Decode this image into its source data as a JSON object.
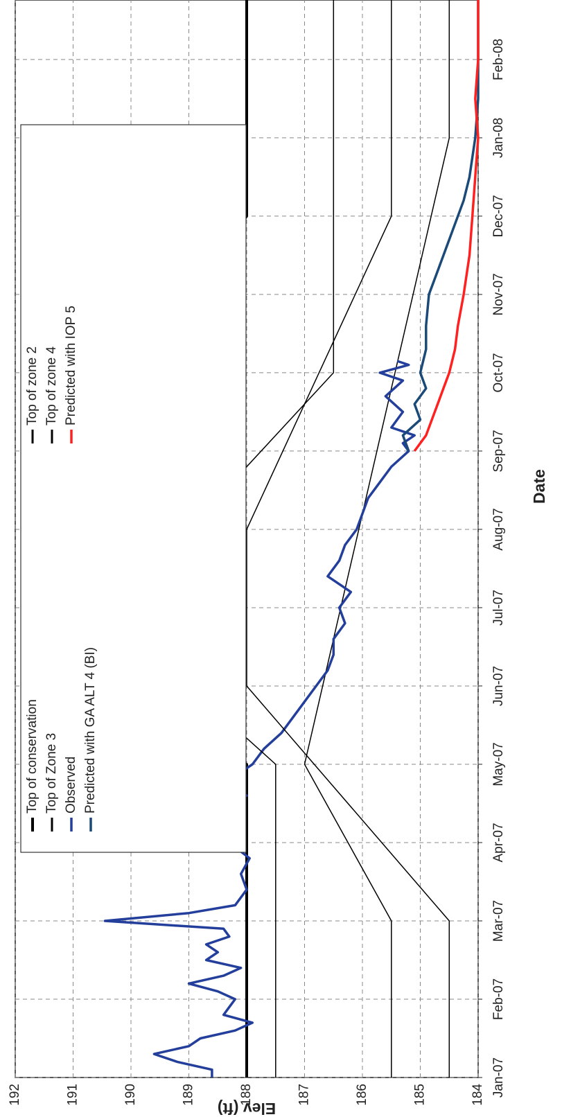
{
  "chart_data": {
    "type": "line",
    "x_label": "Date",
    "y_label": "Elev (ft)",
    "xlim": [
      0,
      13.76
    ],
    "ylim": [
      184,
      192
    ],
    "xticks": [
      {
        "value": 0,
        "label": "Jan-07"
      },
      {
        "value": 1,
        "label": "Feb-07"
      },
      {
        "value": 2,
        "label": "Mar-07"
      },
      {
        "value": 3,
        "label": "Apr-07"
      },
      {
        "value": 4,
        "label": "May-07"
      },
      {
        "value": 5,
        "label": "Jun-07"
      },
      {
        "value": 6,
        "label": "Jul-07"
      },
      {
        "value": 7,
        "label": "Aug-07"
      },
      {
        "value": 8,
        "label": "Sep-07"
      },
      {
        "value": 9,
        "label": "Oct-07"
      },
      {
        "value": 10,
        "label": "Nov-07"
      },
      {
        "value": 11,
        "label": "Dec-07"
      },
      {
        "value": 12,
        "label": "Jan-08"
      },
      {
        "value": 13,
        "label": "Feb-08"
      }
    ],
    "yticks": [
      184,
      185,
      186,
      187,
      188,
      189,
      190,
      191,
      192
    ],
    "grid": true,
    "series": [
      {
        "name": "Top of conservation",
        "color": "#000000",
        "width": 4,
        "x": [
          0,
          4,
          5,
          9,
          11,
          13.76
        ],
        "values": [
          188,
          188,
          190,
          190,
          188,
          188
        ]
      },
      {
        "name": "Top of Zone 3",
        "color": "#000000",
        "width": 1.5,
        "x": [
          0,
          2,
          4,
          12,
          13.76
        ],
        "values": [
          185.5,
          185.5,
          187,
          184.5,
          184.5
        ]
      },
      {
        "name": "Observed",
        "color": "#233f9b",
        "width": 3.5,
        "x": [
          0,
          0.1,
          0.2,
          0.3,
          0.4,
          0.5,
          0.6,
          0.7,
          0.8,
          0.9,
          1.0,
          1.1,
          1.2,
          1.3,
          1.4,
          1.5,
          1.6,
          1.7,
          1.8,
          1.9,
          2.0,
          2.1,
          2.2,
          2.4,
          2.6,
          2.8,
          3.0,
          3.2,
          3.4,
          3.5,
          3.6,
          3.7,
          3.8,
          3.9,
          4.0,
          4.2,
          4.4,
          4.6,
          4.8,
          5.0,
          5.2,
          5.4,
          5.6,
          5.8,
          6.0,
          6.2,
          6.4,
          6.6,
          6.8,
          7.0,
          7.2,
          7.4,
          7.6,
          7.8,
          8.0,
          8.1,
          8.2,
          8.3,
          8.5,
          8.7,
          8.9,
          9.0,
          9.1,
          9.15
        ],
        "values": [
          188.6,
          188.6,
          189.2,
          189.6,
          189.0,
          188.8,
          188.2,
          187.9,
          188.4,
          188.3,
          188.2,
          188.5,
          189.0,
          188.4,
          188.1,
          188.7,
          188.5,
          188.7,
          188.3,
          188.4,
          190.45,
          189.0,
          188.2,
          188.0,
          188.1,
          187.95,
          188.3,
          188.5,
          188.1,
          188.6,
          188.0,
          188.2,
          188.9,
          188.1,
          187.9,
          187.7,
          187.4,
          187.2,
          187.0,
          186.8,
          186.6,
          186.5,
          186.5,
          186.3,
          186.4,
          186.2,
          186.6,
          186.4,
          186.3,
          186.1,
          186.0,
          185.9,
          185.7,
          185.5,
          185.2,
          185.3,
          185.1,
          185.5,
          185.3,
          185.6,
          185.3,
          185.7,
          185.2,
          185.4
        ]
      },
      {
        "name": "Predicted with GA ALT 4 (BI)",
        "color": "#1b4a78",
        "width": 3.5,
        "x": [
          8.0,
          8.2,
          8.4,
          8.6,
          8.8,
          9.0,
          9.3,
          9.6,
          10.0,
          10.3,
          10.6,
          10.9,
          11.2,
          11.5,
          12.0,
          12.5,
          13.0,
          13.76
        ],
        "values": [
          185.2,
          185.3,
          185.0,
          185.1,
          184.9,
          185.0,
          184.9,
          184.9,
          184.85,
          184.7,
          184.55,
          184.4,
          184.25,
          184.15,
          184.05,
          184.0,
          184.0,
          184.0
        ]
      },
      {
        "name": "Top of zone 2",
        "color": "#000000",
        "width": 1.5,
        "x": [
          0,
          4,
          5,
          7,
          9,
          13.76
        ],
        "values": [
          187.5,
          187.5,
          189,
          189,
          186.5,
          186.5
        ]
      },
      {
        "name": "Top of zone 4",
        "color": "#000000",
        "width": 1.5,
        "x": [
          0,
          2,
          5,
          7,
          11,
          13.76
        ],
        "values": [
          184.5,
          184.5,
          188,
          188,
          185.5,
          185.5
        ]
      },
      {
        "name": "Predicted with IOP 5",
        "color": "#ff2020",
        "width": 3.5,
        "x": [
          8.0,
          8.2,
          8.4,
          8.6,
          8.8,
          9.0,
          9.3,
          9.6,
          10.0,
          10.5,
          11.0,
          11.5,
          12.0,
          12.5,
          13.0,
          13.76
        ],
        "values": [
          185.1,
          184.9,
          184.8,
          184.7,
          184.6,
          184.5,
          184.4,
          184.35,
          184.25,
          184.15,
          184.1,
          184.05,
          184.0,
          184.05,
          184.0,
          184.0
        ]
      }
    ]
  }
}
